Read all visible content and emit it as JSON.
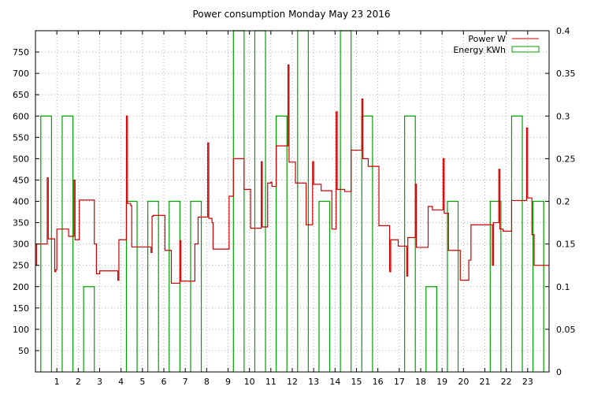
{
  "chart_data": {
    "type": "line",
    "title": "Power consumption Monday May 23 2016",
    "x_ticks": [
      1,
      2,
      3,
      4,
      5,
      6,
      7,
      8,
      9,
      10,
      11,
      12,
      13,
      14,
      15,
      16,
      17,
      18,
      19,
      20,
      21,
      22,
      23
    ],
    "xlim": [
      0,
      24
    ],
    "y_left": {
      "ylim": [
        0,
        800
      ],
      "ticks": [
        50,
        100,
        150,
        200,
        250,
        300,
        350,
        400,
        450,
        500,
        550,
        600,
        650,
        700,
        750
      ]
    },
    "y_right": {
      "ylim": [
        0,
        0.4
      ],
      "ticks": [
        "0",
        "0.05",
        "0.1",
        "0.15",
        "0.2",
        "0.25",
        "0.3",
        "0.35",
        "0.4"
      ]
    },
    "grid": true,
    "legend_position": "top-right",
    "colors": {
      "power": "#cc0000",
      "energy": "#00a000"
    },
    "series": [
      {
        "name": "Power W",
        "axis": "left",
        "style": "step",
        "points": [
          [
            0,
            250
          ],
          [
            0.05,
            300
          ],
          [
            0.5,
            300
          ],
          [
            0.55,
            455
          ],
          [
            0.6,
            312
          ],
          [
            0.85,
            312
          ],
          [
            0.9,
            235
          ],
          [
            0.95,
            240
          ],
          [
            1.0,
            335
          ],
          [
            1.5,
            335
          ],
          [
            1.55,
            318
          ],
          [
            1.75,
            318
          ],
          [
            1.8,
            450
          ],
          [
            1.85,
            310
          ],
          [
            2.0,
            310
          ],
          [
            2.05,
            403
          ],
          [
            2.7,
            403
          ],
          [
            2.75,
            300
          ],
          [
            2.85,
            230
          ],
          [
            3.0,
            237
          ],
          [
            3.8,
            237
          ],
          [
            3.85,
            215
          ],
          [
            3.9,
            310
          ],
          [
            4.2,
            310
          ],
          [
            4.25,
            600
          ],
          [
            4.3,
            395
          ],
          [
            4.45,
            390
          ],
          [
            4.5,
            293
          ],
          [
            4.9,
            293
          ],
          [
            5.3,
            293
          ],
          [
            5.4,
            280
          ],
          [
            5.45,
            365
          ],
          [
            5.5,
            367
          ],
          [
            5.6,
            367
          ],
          [
            6.0,
            367
          ],
          [
            6.05,
            285
          ],
          [
            6.3,
            285
          ],
          [
            6.35,
            208
          ],
          [
            6.7,
            208
          ],
          [
            6.75,
            308
          ],
          [
            6.8,
            213
          ],
          [
            7.0,
            213
          ],
          [
            7.4,
            213
          ],
          [
            7.45,
            300
          ],
          [
            7.6,
            363
          ],
          [
            8.0,
            363
          ],
          [
            8.05,
            537
          ],
          [
            8.1,
            360
          ],
          [
            8.25,
            350
          ],
          [
            8.3,
            288
          ],
          [
            9.0,
            288
          ],
          [
            9.05,
            412
          ],
          [
            9.2,
            412
          ],
          [
            9.25,
            500
          ],
          [
            9.7,
            500
          ],
          [
            9.75,
            428
          ],
          [
            10.0,
            428
          ],
          [
            10.05,
            337
          ],
          [
            10.5,
            337
          ],
          [
            10.55,
            493
          ],
          [
            10.6,
            340
          ],
          [
            10.8,
            340
          ],
          [
            10.85,
            443
          ],
          [
            11.0,
            445
          ],
          [
            11.05,
            435
          ],
          [
            11.2,
            435
          ],
          [
            11.25,
            530
          ],
          [
            11.75,
            530
          ],
          [
            11.8,
            720
          ],
          [
            11.85,
            492
          ],
          [
            12.1,
            492
          ],
          [
            12.15,
            443
          ],
          [
            12.6,
            443
          ],
          [
            12.65,
            345
          ],
          [
            12.9,
            345
          ],
          [
            12.95,
            493
          ],
          [
            13.0,
            440
          ],
          [
            13.3,
            440
          ],
          [
            13.35,
            425
          ],
          [
            13.8,
            425
          ],
          [
            13.85,
            335
          ],
          [
            14.0,
            335
          ],
          [
            14.05,
            610
          ],
          [
            14.1,
            428
          ],
          [
            14.4,
            428
          ],
          [
            14.45,
            423
          ],
          [
            14.7,
            423
          ],
          [
            14.75,
            520
          ],
          [
            15.2,
            520
          ],
          [
            15.25,
            640
          ],
          [
            15.3,
            500
          ],
          [
            15.5,
            500
          ],
          [
            15.55,
            482
          ],
          [
            16.0,
            482
          ],
          [
            16.05,
            343
          ],
          [
            16.5,
            343
          ],
          [
            16.55,
            235
          ],
          [
            16.6,
            310
          ],
          [
            16.9,
            310
          ],
          [
            16.95,
            295
          ],
          [
            17.3,
            295
          ],
          [
            17.35,
            225
          ],
          [
            17.4,
            315
          ],
          [
            17.7,
            315
          ],
          [
            17.75,
            440
          ],
          [
            17.8,
            292
          ],
          [
            18.3,
            292
          ],
          [
            18.35,
            388
          ],
          [
            18.5,
            388
          ],
          [
            18.55,
            380
          ],
          [
            19.0,
            380
          ],
          [
            19.05,
            500
          ],
          [
            19.1,
            372
          ],
          [
            19.25,
            372
          ],
          [
            19.3,
            285
          ],
          [
            19.8,
            285
          ],
          [
            19.85,
            215
          ],
          [
            20.2,
            215
          ],
          [
            20.25,
            262
          ],
          [
            20.35,
            345
          ],
          [
            21.3,
            345
          ],
          [
            21.35,
            250
          ],
          [
            21.4,
            350
          ],
          [
            21.6,
            350
          ],
          [
            21.65,
            475
          ],
          [
            21.7,
            335
          ],
          [
            21.85,
            330
          ],
          [
            22.2,
            330
          ],
          [
            22.25,
            402
          ],
          [
            22.9,
            402
          ],
          [
            22.95,
            572
          ],
          [
            23.0,
            408
          ],
          [
            23.2,
            322
          ],
          [
            23.3,
            250
          ],
          [
            24.0,
            250
          ]
        ]
      },
      {
        "name": "Energy KWh",
        "axis": "right",
        "style": "bars",
        "bars": [
          [
            0,
            0.3
          ],
          [
            1,
            0.3
          ],
          [
            2,
            0.1
          ],
          [
            3,
            0
          ],
          [
            4,
            0.2
          ],
          [
            5,
            0.2
          ],
          [
            6,
            0.2
          ],
          [
            7,
            0.2
          ],
          [
            8,
            0
          ],
          [
            9,
            0.4
          ],
          [
            10,
            0.4
          ],
          [
            11,
            0.3
          ],
          [
            12,
            0.4
          ],
          [
            13,
            0.2
          ],
          [
            14,
            0.4
          ],
          [
            15,
            0.3
          ],
          [
            16,
            0
          ],
          [
            17,
            0.3
          ],
          [
            18,
            0.1
          ],
          [
            19,
            0.2
          ],
          [
            20,
            0
          ],
          [
            21,
            0.2
          ],
          [
            22,
            0.3
          ],
          [
            23,
            0.2
          ]
        ]
      }
    ]
  }
}
